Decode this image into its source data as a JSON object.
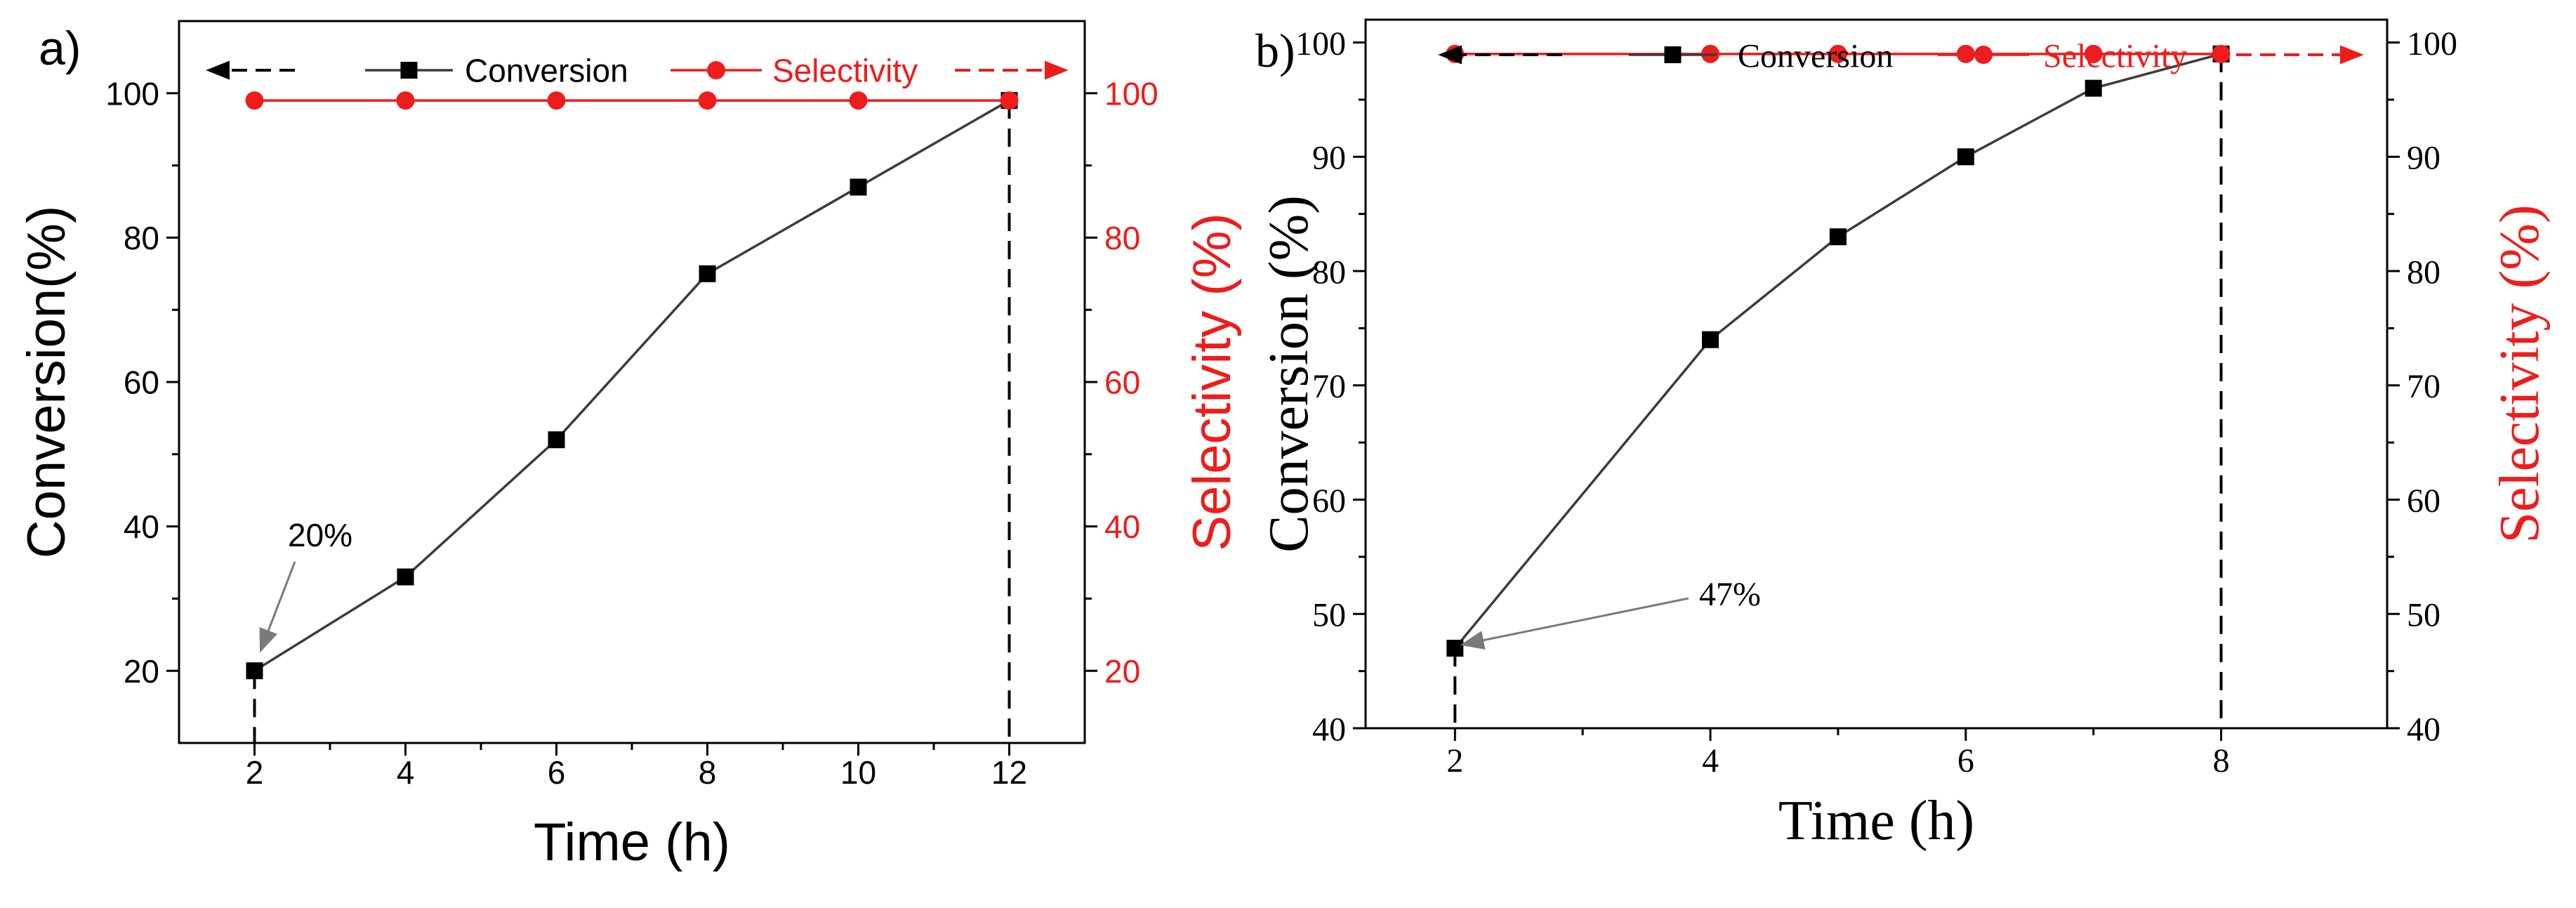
{
  "colors": {
    "conversion": "#000000",
    "conversion_line": "#3c3c3c",
    "selectivity": "#ee1c1c",
    "axis": "#000000"
  },
  "chart_data": [
    {
      "panel_label": "a)",
      "type": "line",
      "font": "sans",
      "xlabel": "Time (h)",
      "ylabel_left": "Conversion(%)",
      "ylabel_right": "Selectivity (%)",
      "xlim": [
        1,
        13
      ],
      "ylim_left": [
        10,
        110
      ],
      "ylim_right": [
        10,
        110
      ],
      "x_ticks": [
        2,
        4,
        6,
        8,
        10,
        12
      ],
      "y_ticks_left": [
        20,
        40,
        60,
        80,
        100
      ],
      "y_ticks_right": [
        20,
        40,
        60,
        80,
        100
      ],
      "legend_placement": "top",
      "series": [
        {
          "name": "Conversion",
          "axis": "left",
          "marker": "square",
          "x": [
            2,
            4,
            6,
            8,
            10,
            12
          ],
          "y": [
            20,
            33,
            52,
            75,
            87,
            99
          ]
        },
        {
          "name": "Selectivity",
          "axis": "right",
          "marker": "circle",
          "x": [
            2,
            4,
            6,
            8,
            10,
            12
          ],
          "y": [
            99,
            99,
            99,
            99,
            99,
            99
          ]
        }
      ],
      "annotations": [
        {
          "text": "20%",
          "x": 2,
          "y": 20
        }
      ],
      "drop_lines_x": [
        2,
        12
      ]
    },
    {
      "panel_label": "b)",
      "type": "line",
      "font": "serif",
      "xlabel": "Time (h)",
      "ylabel_left": "Conversion (%)",
      "ylabel_right": "Selectivity (%)",
      "xlim": [
        1.3,
        9.3
      ],
      "ylim_left": [
        40,
        102
      ],
      "ylim_right": [
        40,
        102
      ],
      "x_ticks": [
        2,
        4,
        6,
        8
      ],
      "y_ticks_left": [
        40,
        50,
        60,
        70,
        80,
        90,
        100
      ],
      "y_ticks_right": [
        40,
        50,
        60,
        70,
        80,
        90,
        100
      ],
      "legend_placement": "top",
      "series": [
        {
          "name": "Conversion",
          "axis": "left",
          "marker": "square",
          "x": [
            2,
            4,
            5,
            6,
            7,
            8
          ],
          "y": [
            47,
            74,
            83,
            90,
            96,
            99
          ]
        },
        {
          "name": "Selectivity",
          "axis": "right",
          "marker": "circle",
          "x": [
            2,
            4,
            5,
            6,
            7,
            8
          ],
          "y": [
            99,
            99,
            99,
            99,
            99,
            99
          ]
        }
      ],
      "annotations": [
        {
          "text": "47%",
          "x": 2,
          "y": 47
        }
      ],
      "drop_lines_x": [
        2,
        8
      ]
    }
  ]
}
